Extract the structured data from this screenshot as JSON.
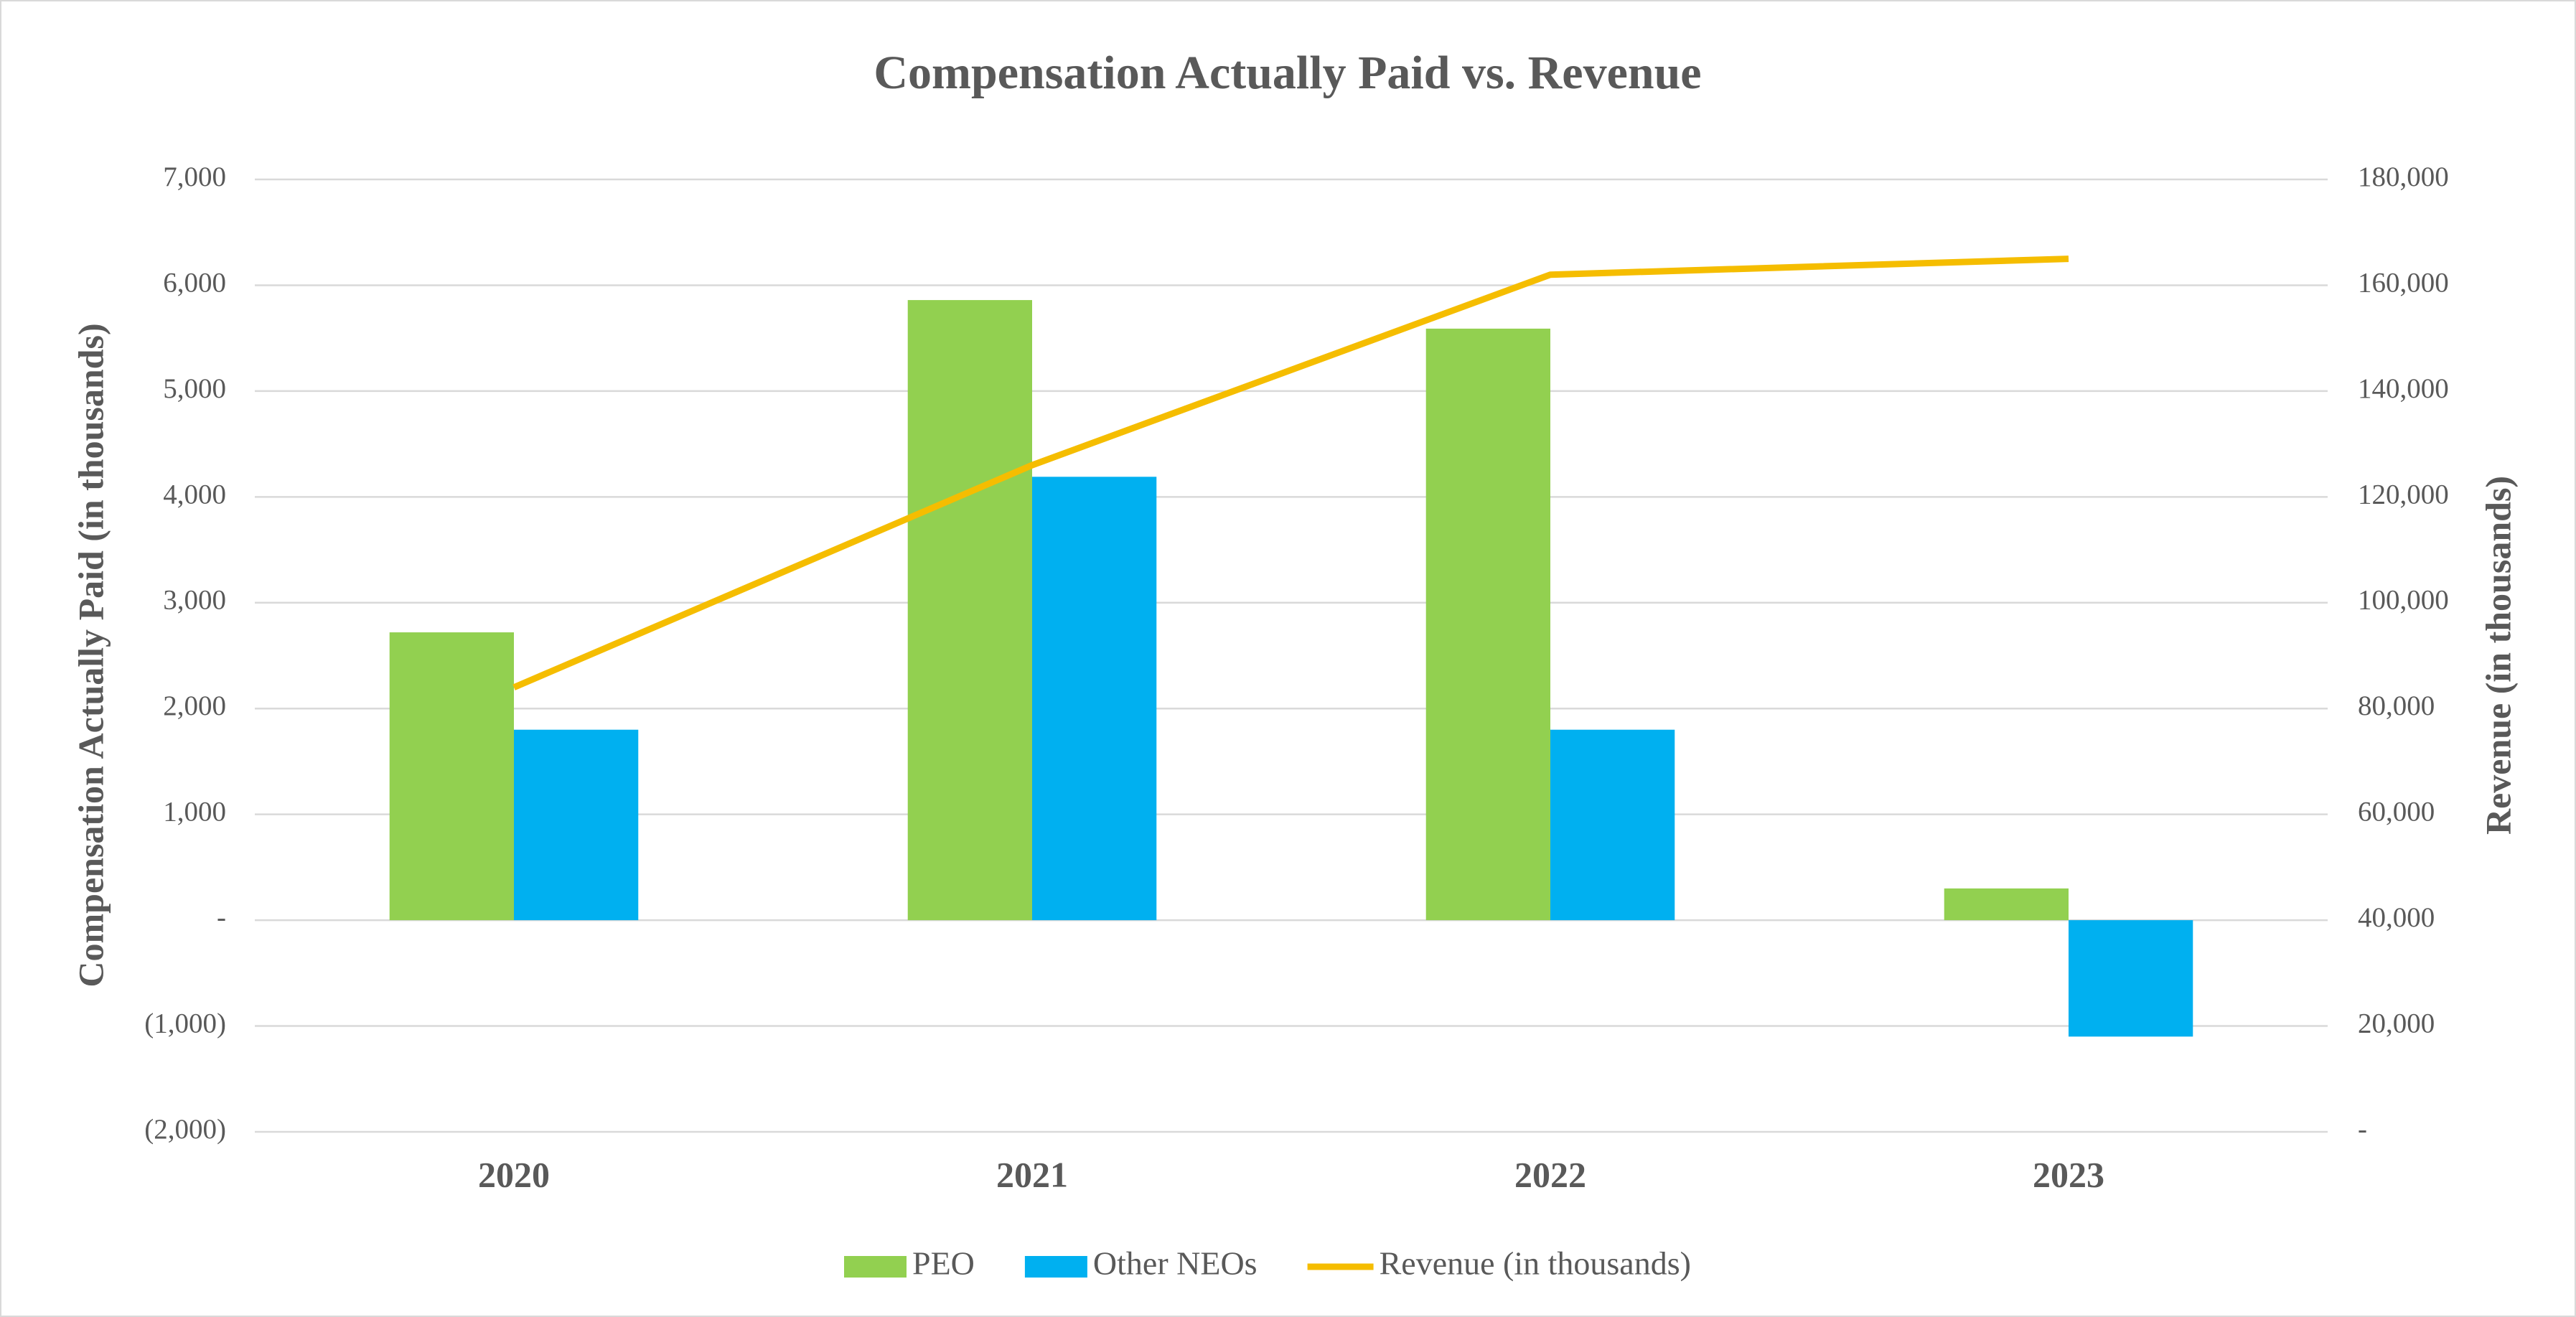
{
  "chart_data": {
    "type": "bar",
    "title": "Compensation Actually Paid vs. Revenue",
    "y_label": "Compensation Actually Paid (in thousands)",
    "y2_label": "Revenue (in thousands)",
    "categories": [
      "2020",
      "2021",
      "2022",
      "2023"
    ],
    "series": [
      {
        "name": "PEO",
        "type": "bar",
        "color": "#92d050",
        "values": [
          2720,
          5860,
          5590,
          300
        ]
      },
      {
        "name": "Other NEOs",
        "type": "bar",
        "color": "#00b0f0",
        "values": [
          1800,
          4190,
          1800,
          -1100
        ]
      },
      {
        "name": "Revenue (in thousands)",
        "type": "line",
        "axis": "y2",
        "color": "#f5bd00",
        "values": [
          84000,
          126000,
          162000,
          165000
        ]
      }
    ],
    "ylim": [
      -2000,
      7000
    ],
    "yticks": [
      {
        "value": -2000,
        "label": "(2,000)"
      },
      {
        "value": -1000,
        "label": "(1,000)"
      },
      {
        "value": 0,
        "label": "-"
      },
      {
        "value": 1000,
        "label": "1,000"
      },
      {
        "value": 2000,
        "label": "2,000"
      },
      {
        "value": 3000,
        "label": "3,000"
      },
      {
        "value": 4000,
        "label": "4,000"
      },
      {
        "value": 5000,
        "label": "5,000"
      },
      {
        "value": 6000,
        "label": "6,000"
      },
      {
        "value": 7000,
        "label": "7,000"
      }
    ],
    "y2lim": [
      0,
      180000
    ],
    "y2ticks": [
      {
        "value": 0,
        "label": "-"
      },
      {
        "value": 20000,
        "label": "20,000"
      },
      {
        "value": 40000,
        "label": "40,000"
      },
      {
        "value": 60000,
        "label": "60,000"
      },
      {
        "value": 80000,
        "label": "80,000"
      },
      {
        "value": 100000,
        "label": "100,000"
      },
      {
        "value": 120000,
        "label": "120,000"
      },
      {
        "value": 140000,
        "label": "140,000"
      },
      {
        "value": 160000,
        "label": "160,000"
      },
      {
        "value": 180000,
        "label": "180,000"
      }
    ],
    "grid": true,
    "legend_position": "bottom"
  }
}
